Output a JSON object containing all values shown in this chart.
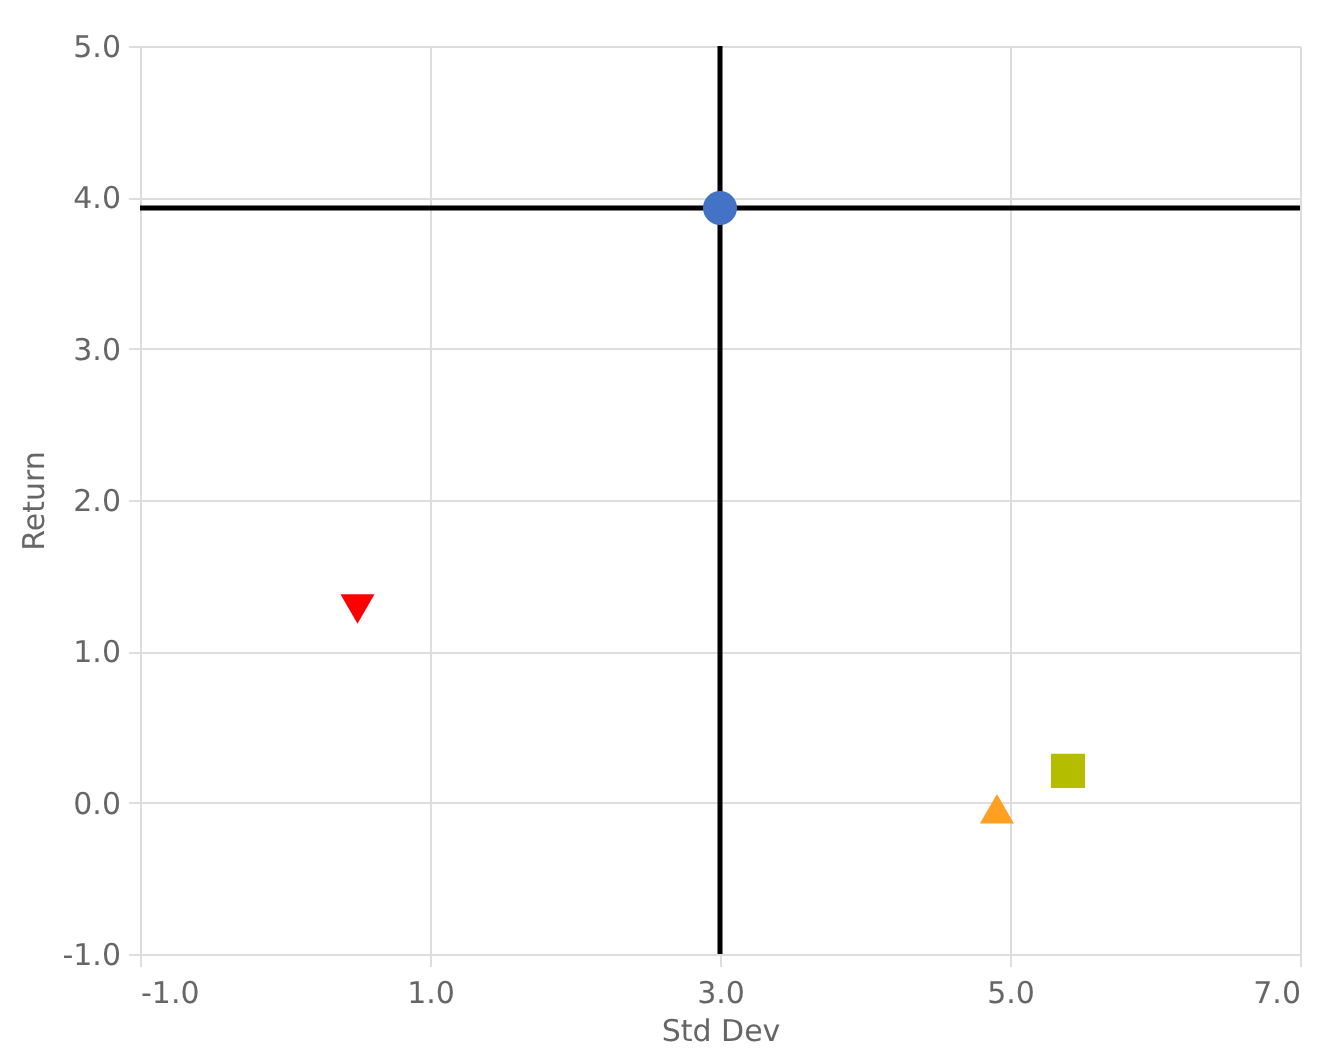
{
  "chart_data": {
    "type": "scatter",
    "xlabel": "Std Dev",
    "ylabel": "Return",
    "xlim": [
      -1,
      7
    ],
    "ylim": [
      -1,
      5
    ],
    "xticks": [
      {
        "value": -1,
        "label": "-1.0"
      },
      {
        "value": 1,
        "label": "1.0"
      },
      {
        "value": 3,
        "label": "3.0"
      },
      {
        "value": 5,
        "label": "5.0"
      },
      {
        "value": 7,
        "label": "7.0"
      }
    ],
    "yticks": [
      {
        "value": -1,
        "label": "-1.0"
      },
      {
        "value": 0,
        "label": "0.0"
      },
      {
        "value": 1,
        "label": "1.0"
      },
      {
        "value": 2,
        "label": "2.0"
      },
      {
        "value": 3,
        "label": "3.0"
      },
      {
        "value": 4,
        "label": "4.0"
      },
      {
        "value": 5,
        "label": "5.0"
      }
    ],
    "grid": true,
    "series": [
      {
        "color": "#4472c4",
        "marker": "circle",
        "x": [
          3.0
        ],
        "values": [
          3.93
        ]
      },
      {
        "color": "#ff0000",
        "marker": "triangle-down",
        "x": [
          0.5
        ],
        "values": [
          1.28
        ]
      },
      {
        "color": "#ffa020",
        "marker": "triangle",
        "x": [
          4.91
        ],
        "values": [
          -0.04
        ]
      },
      {
        "color": "#b5bd00",
        "marker": "square",
        "x": [
          5.4
        ],
        "values": [
          0.21
        ]
      }
    ],
    "ref_lines": [
      {
        "axis": "x",
        "value": 3,
        "color": "#000000",
        "line_style": "solid"
      },
      {
        "axis": "y",
        "value": 3.93,
        "color": "#000000",
        "line_style": "solid"
      }
    ]
  }
}
